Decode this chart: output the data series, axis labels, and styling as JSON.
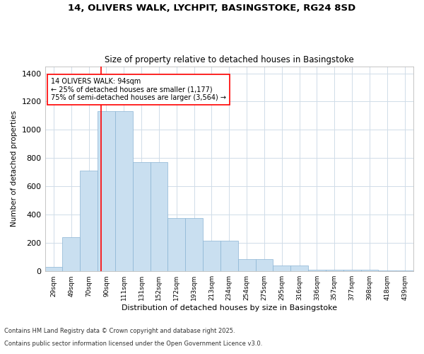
{
  "title1": "14, OLIVERS WALK, LYCHPIT, BASINGSTOKE, RG24 8SD",
  "title2": "Size of property relative to detached houses in Basingstoke",
  "xlabel": "Distribution of detached houses by size in Basingstoke",
  "ylabel": "Number of detached properties",
  "categories": [
    "29sqm",
    "49sqm",
    "70sqm",
    "90sqm",
    "111sqm",
    "131sqm",
    "152sqm",
    "172sqm",
    "193sqm",
    "213sqm",
    "234sqm",
    "254sqm",
    "275sqm",
    "295sqm",
    "316sqm",
    "336sqm",
    "357sqm",
    "377sqm",
    "398sqm",
    "418sqm",
    "439sqm"
  ],
  "values": [
    30,
    240,
    710,
    1130,
    1130,
    770,
    770,
    375,
    375,
    215,
    215,
    85,
    85,
    40,
    40,
    10,
    10,
    10,
    10,
    5,
    5
  ],
  "bar_color": "#c9dff0",
  "bar_edge_color": "#8ab4d4",
  "vline_color": "red",
  "annotation_text": "14 OLIVERS WALK: 94sqm\n← 25% of detached houses are smaller (1,177)\n75% of semi-detached houses are larger (3,564) →",
  "annotation_box_color": "white",
  "annotation_box_edgecolor": "red",
  "ylim": [
    0,
    1450
  ],
  "yticks": [
    0,
    200,
    400,
    600,
    800,
    1000,
    1200,
    1400
  ],
  "background_color": "white",
  "grid_color": "#d0dce8",
  "footer1": "Contains HM Land Registry data © Crown copyright and database right 2025.",
  "footer2": "Contains public sector information licensed under the Open Government Licence v3.0."
}
